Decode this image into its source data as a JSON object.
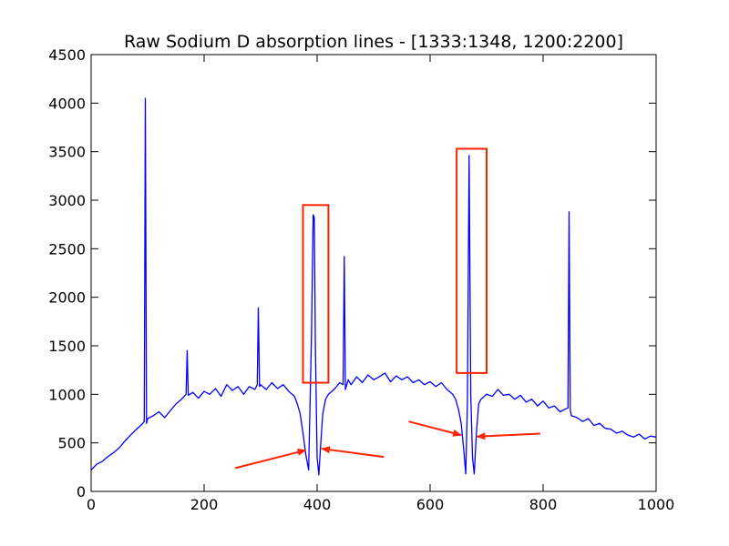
{
  "chart_data": {
    "type": "line",
    "title": "Raw Sodium D absorption lines - [1333:1348, 1200:2200]",
    "xlabel": "",
    "ylabel": "",
    "xlim": [
      0,
      1000
    ],
    "ylim": [
      0,
      4500
    ],
    "x_ticks": [
      0,
      200,
      400,
      600,
      800,
      1000
    ],
    "y_ticks": [
      0,
      500,
      1000,
      1500,
      2000,
      2500,
      3000,
      3500,
      4000,
      4500
    ],
    "x_tick_labels": [
      "0",
      "200",
      "400",
      "600",
      "800",
      "1000"
    ],
    "y_tick_labels": [
      "0",
      "500",
      "1000",
      "1500",
      "2000",
      "2500",
      "3000",
      "3500",
      "4000",
      "4500"
    ],
    "grid": false,
    "legend": "none",
    "series_color": "#0000ff",
    "series": [
      {
        "x": [
          0,
          10,
          20,
          30,
          40,
          50,
          60,
          70,
          80,
          90,
          94,
          96,
          98,
          100,
          110,
          120,
          130,
          140,
          150,
          160,
          168,
          170,
          172,
          180,
          190,
          200,
          210,
          220,
          230,
          240,
          250,
          260,
          270,
          280,
          290,
          294,
          296,
          298,
          300,
          310,
          320,
          330,
          340,
          350,
          360,
          365,
          370,
          375,
          380,
          385,
          390,
          393,
          395,
          397,
          400,
          403,
          406,
          410,
          415,
          420,
          430,
          440,
          446,
          448,
          450,
          455,
          460,
          470,
          480,
          490,
          500,
          510,
          520,
          530,
          540,
          550,
          560,
          570,
          580,
          590,
          600,
          610,
          620,
          630,
          640,
          645,
          650,
          655,
          660,
          663,
          666,
          669,
          672,
          675,
          678,
          682,
          686,
          690,
          700,
          710,
          720,
          730,
          740,
          750,
          760,
          770,
          780,
          790,
          800,
          810,
          820,
          830,
          840,
          844,
          846,
          848,
          850,
          860,
          870,
          880,
          890,
          900,
          910,
          920,
          930,
          940,
          950,
          960,
          970,
          980,
          990,
          1000
        ],
        "y": [
          220,
          280,
          310,
          360,
          400,
          450,
          520,
          580,
          640,
          690,
          720,
          4050,
          700,
          750,
          780,
          820,
          760,
          830,
          900,
          950,
          1000,
          1450,
          990,
          1020,
          960,
          1030,
          1000,
          1060,
          980,
          1100,
          1040,
          1080,
          1000,
          1080,
          1050,
          1100,
          1890,
          1080,
          1100,
          1050,
          1120,
          1060,
          1100,
          1030,
          980,
          900,
          800,
          600,
          380,
          220,
          1600,
          2850,
          2820,
          1500,
          350,
          170,
          450,
          800,
          950,
          1000,
          1050,
          1120,
          1100,
          2420,
          1050,
          1150,
          1100,
          1180,
          1120,
          1200,
          1150,
          1180,
          1220,
          1130,
          1190,
          1150,
          1180,
          1120,
          1150,
          1100,
          1130,
          1080,
          1120,
          1050,
          1000,
          950,
          850,
          700,
          400,
          180,
          900,
          3460,
          1000,
          350,
          180,
          600,
          900,
          950,
          1000,
          980,
          1050,
          990,
          1000,
          950,
          990,
          920,
          950,
          880,
          930,
          860,
          880,
          820,
          850,
          860,
          2880,
          840,
          780,
          760,
          720,
          750,
          680,
          700,
          650,
          640,
          600,
          620,
          580,
          560,
          590,
          540,
          570,
          560
        ]
      }
    ],
    "annotations": [
      {
        "type": "box",
        "label": "",
        "x0": 375,
        "x1": 420,
        "y0": 1120,
        "y1": 2950,
        "color": "#ff2200"
      },
      {
        "type": "box",
        "label": "",
        "x0": 647,
        "x1": 700,
        "y0": 1220,
        "y1": 3530,
        "color": "#ff2200"
      },
      {
        "type": "arrow",
        "label": "",
        "from": [
          255,
          240
        ],
        "to": [
          380,
          425
        ],
        "color": "#ff2200"
      },
      {
        "type": "arrow",
        "label": "",
        "from": [
          518,
          355
        ],
        "to": [
          408,
          440
        ],
        "color": "#ff2200"
      },
      {
        "type": "arrow",
        "label": "",
        "from": [
          562,
          720
        ],
        "to": [
          655,
          580
        ],
        "color": "#ff2200"
      },
      {
        "type": "arrow",
        "label": "",
        "from": [
          795,
          595
        ],
        "to": [
          683,
          565
        ],
        "color": "#ff2200"
      }
    ]
  }
}
